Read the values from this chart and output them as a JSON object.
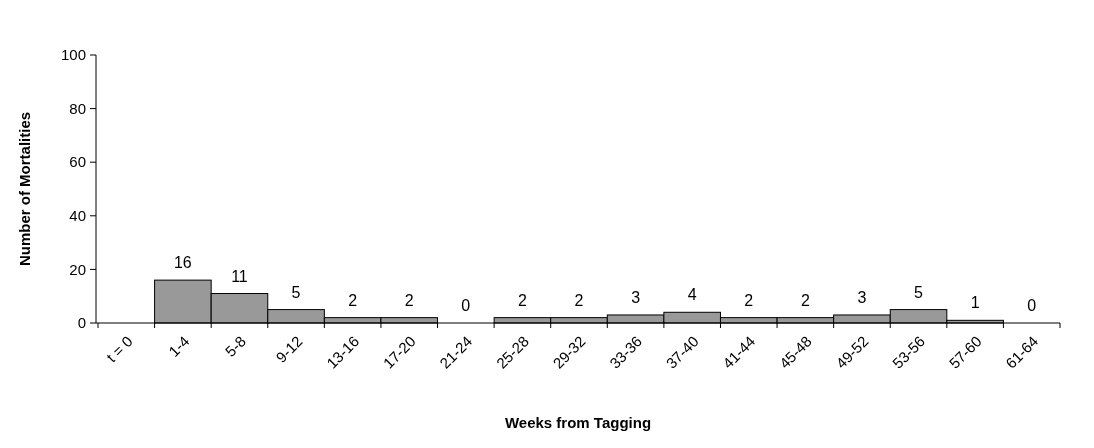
{
  "chart_data": {
    "type": "bar",
    "xlabel": "Weeks from Tagging",
    "ylabel": "Number of Mortalities",
    "categories": [
      "t = 0",
      "1-4",
      "5-8",
      "9-12",
      "13-16",
      "17-20",
      "21-24",
      "25-28",
      "29-32",
      "33-36",
      "37-40",
      "41-44",
      "45-48",
      "49-52",
      "53-56",
      "57-60",
      "61-64"
    ],
    "values": [
      null,
      16,
      11,
      5,
      2,
      2,
      0,
      2,
      2,
      3,
      4,
      2,
      2,
      3,
      5,
      1,
      0
    ],
    "color": "#999999",
    "ylim": [
      0,
      100
    ],
    "yticks": [
      0,
      20,
      40,
      60,
      80,
      100
    ],
    "grid": false,
    "data_labels": true
  }
}
